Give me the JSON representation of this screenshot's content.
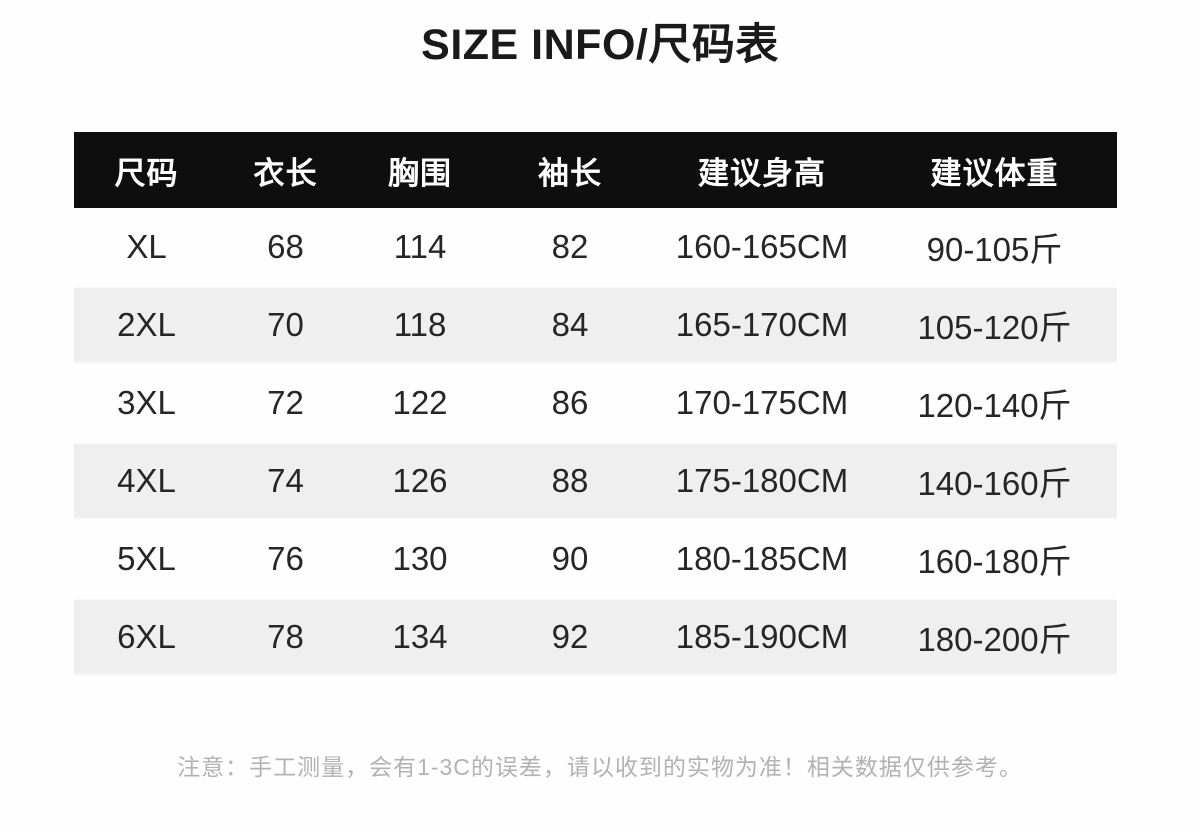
{
  "page": {
    "title": "SIZE INFO/尺码表",
    "note": "注意：手工测量，会有1-3C的误差，请以收到的实物为准！相关数据仅供参考。"
  },
  "size_table": {
    "headers": [
      "尺码",
      "衣长",
      "胸围",
      "袖长",
      "建议身高",
      "建议体重"
    ],
    "rows": [
      [
        "XL",
        "68",
        "114",
        "82",
        "160-165CM",
        "90-105斤"
      ],
      [
        "2XL",
        "70",
        "118",
        "84",
        "165-170CM",
        "105-120斤"
      ],
      [
        "3XL",
        "72",
        "122",
        "86",
        "170-175CM",
        "120-140斤"
      ],
      [
        "4XL",
        "74",
        "126",
        "88",
        "175-180CM",
        "140-160斤"
      ],
      [
        "5XL",
        "76",
        "130",
        "90",
        "180-185CM",
        "160-180斤"
      ],
      [
        "6XL",
        "78",
        "134",
        "92",
        "185-190CM",
        "180-200斤"
      ]
    ]
  },
  "chart_data": {
    "type": "table",
    "title": "SIZE INFO/尺码表",
    "columns": [
      "尺码",
      "衣长",
      "胸围",
      "袖长",
      "建议身高",
      "建议体重"
    ],
    "rows": [
      [
        "XL",
        68,
        114,
        82,
        "160-165CM",
        "90-105斤"
      ],
      [
        "2XL",
        70,
        118,
        84,
        "165-170CM",
        "105-120斤"
      ],
      [
        "3XL",
        72,
        122,
        86,
        "170-175CM",
        "120-140斤"
      ],
      [
        "4XL",
        74,
        126,
        88,
        "175-180CM",
        "140-160斤"
      ],
      [
        "5XL",
        76,
        130,
        90,
        "180-185CM",
        "160-180斤"
      ],
      [
        "6XL",
        78,
        134,
        92,
        "185-190CM",
        "180-200斤"
      ]
    ]
  },
  "colors": {
    "page_bg": "#fefefe",
    "header_bg": "#0e0e0e",
    "header_text": "#ffffff",
    "stripe_bg": "#efefef",
    "body_text": "#262626",
    "note_text": "#b2b2b2"
  }
}
